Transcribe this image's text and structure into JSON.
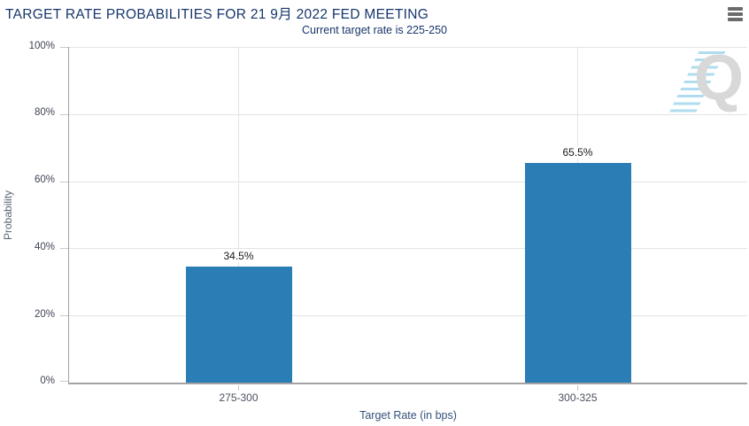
{
  "header": {
    "title": "TARGET RATE PROBABILITIES FOR 21 9月 2022 FED MEETING",
    "subtitle": "Current target rate is 225-250"
  },
  "menu": {
    "icon": "hamburger-icon"
  },
  "watermark": {
    "letter": "Q"
  },
  "colors": {
    "bar": "#2a7db5",
    "title_text": "#17356b",
    "axis_text": "#3f4455",
    "gridline": "#e4e4e4",
    "axis_line": "#a3a3a3",
    "watermark_gray": "#d8d8d8",
    "watermark_blue": "#a6d8ec"
  },
  "chart_data": {
    "type": "bar",
    "title": "TARGET RATE PROBABILITIES FOR 21 9月 2022 FED MEETING",
    "subtitle": "Current target rate is 225-250",
    "categories": [
      "275-300",
      "300-325"
    ],
    "values": [
      34.5,
      65.5
    ],
    "value_labels": [
      "34.5%",
      "65.5%"
    ],
    "xlabel": "Target Rate (in bps)",
    "ylabel": "Probability",
    "ylim": [
      0,
      100
    ],
    "ytick_step": 20,
    "yticks": [
      "0%",
      "20%",
      "40%",
      "60%",
      "80%",
      "100%"
    ],
    "grid": true,
    "legend": false,
    "bar_color": "#2a7db5"
  }
}
